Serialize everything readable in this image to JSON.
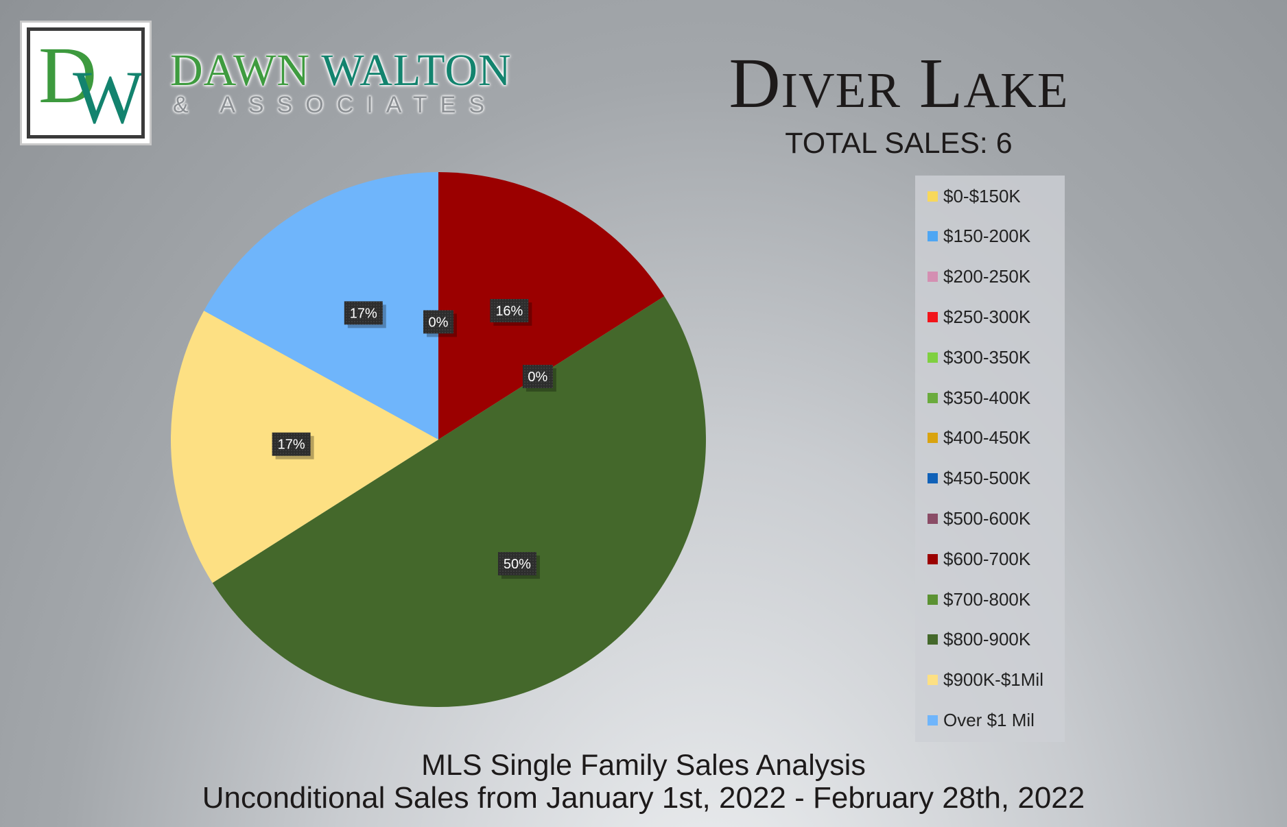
{
  "branding": {
    "logo_letter_1": "D",
    "logo_letter_2": "W",
    "name_word_1": "DAWN",
    "name_word_2": "WALTON",
    "sub": "& ASSOCIATES"
  },
  "chart_data": {
    "type": "pie",
    "title": "Diver Lake",
    "subtitle": "TOTAL SALES: 6",
    "footer_line_1": "MLS Single Family Sales Analysis",
    "footer_line_2": "Unconditional Sales from January 1st, 2022 - February 28th, 2022",
    "legend_position": "right",
    "slices": [
      {
        "label": "$0-$150K",
        "color": "#f8d85a",
        "value": 0,
        "display": ""
      },
      {
        "label": "$150-200K",
        "color": "#4ea6f3",
        "value": 0,
        "display": ""
      },
      {
        "label": "$200-250K",
        "color": "#d48fb2",
        "value": 0,
        "display": ""
      },
      {
        "label": "$250-300K",
        "color": "#f2141a",
        "value": 0,
        "display": ""
      },
      {
        "label": "$300-350K",
        "color": "#7fd040",
        "value": 0,
        "display": ""
      },
      {
        "label": "$350-400K",
        "color": "#6aab3d",
        "value": 0,
        "display": ""
      },
      {
        "label": "$400-450K",
        "color": "#d9a30f",
        "value": 0,
        "display": ""
      },
      {
        "label": "$450-500K",
        "color": "#1061b8",
        "value": 0,
        "display": ""
      },
      {
        "label": "$500-600K",
        "color": "#8a4c66",
        "value": 0,
        "display": "0%"
      },
      {
        "label": "$600-700K",
        "color": "#9b0000",
        "value": 16,
        "display": "16%"
      },
      {
        "label": "$700-800K",
        "color": "#5b9232",
        "value": 0,
        "display": "0%"
      },
      {
        "label": "$800-900K",
        "color": "#44682b",
        "value": 50,
        "display": "50%"
      },
      {
        "label": "$900K-$1Mil",
        "color": "#fde083",
        "value": 17,
        "display": "17%"
      },
      {
        "label": "Over $1 Mil",
        "color": "#6fb5fb",
        "value": 17,
        "display": "17%"
      }
    ]
  }
}
